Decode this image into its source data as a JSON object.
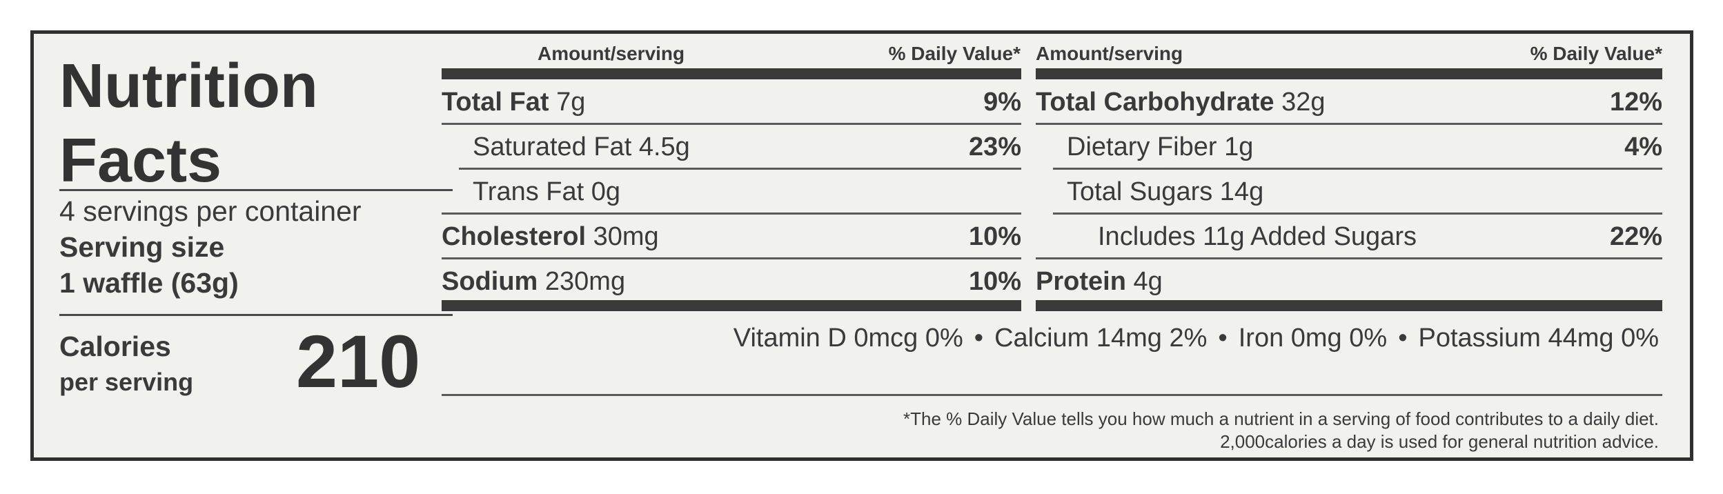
{
  "header": {
    "title_line1": "Nutrition",
    "title_line2": "Facts",
    "servings_per_container": "4 servings per container",
    "serving_size_label": "Serving size",
    "serving_size_value": "1 waffle (63g)"
  },
  "calories": {
    "label": "Calories",
    "sublabel": "per serving",
    "value": "210"
  },
  "column_headers": {
    "amount": "Amount/serving",
    "daily_value": "% Daily Value*"
  },
  "left_rows": [
    {
      "name": "Total Fat",
      "amount": "7g",
      "dv": "9%",
      "bold": true,
      "indent": 0
    },
    {
      "name": "Saturated Fat",
      "amount": "4.5g",
      "dv": "23%",
      "bold": false,
      "indent": 1
    },
    {
      "name": "Trans Fat",
      "amount": "0g",
      "dv": "",
      "bold": false,
      "indent": 1
    },
    {
      "name": "Cholesterol",
      "amount": "30mg",
      "dv": "10%",
      "bold": true,
      "indent": 0
    },
    {
      "name": "Sodium",
      "amount": "230mg",
      "dv": "10%",
      "bold": true,
      "indent": 0
    }
  ],
  "right_rows": [
    {
      "name": "Total Carbohydrate",
      "amount": "32g",
      "dv": "12%",
      "bold": true,
      "indent": 0
    },
    {
      "name": "Dietary Fiber",
      "amount": "1g",
      "dv": "4%",
      "bold": false,
      "indent": 1
    },
    {
      "name": "Total Sugars",
      "amount": "14g",
      "dv": "",
      "bold": false,
      "indent": 1
    },
    {
      "name": "Includes 11g Added Sugars",
      "amount": "",
      "dv": "22%",
      "bold": false,
      "indent": 2
    },
    {
      "name": "Protein",
      "amount": "4g",
      "dv": "",
      "bold": true,
      "indent": 0
    }
  ],
  "vitamins": [
    "Vitamin D 0mcg 0%",
    "Calcium 14mg 2%",
    "Iron 0mg 0%",
    "Potassium 44mg 0%"
  ],
  "footnote": {
    "line1": "*The % Daily Value tells you how much a nutrient in a serving of food contributes to a daily diet.",
    "line2": "2,000calories a day is used for general nutrition advice."
  }
}
